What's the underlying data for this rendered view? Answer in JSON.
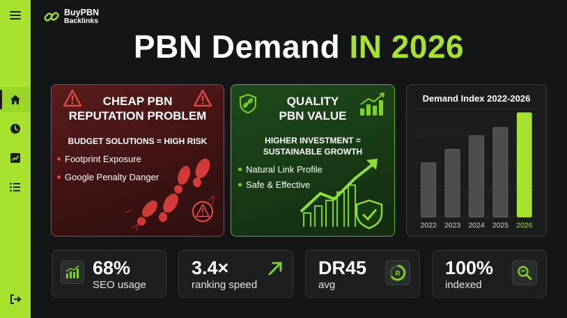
{
  "brand": {
    "line1": "BuyPBN",
    "line2": "Backlinks"
  },
  "title": {
    "main": "PBN Demand ",
    "accent": "IN 2026"
  },
  "sidebar": {
    "items": [
      {
        "icon": "menu-icon"
      },
      {
        "icon": "home-icon"
      },
      {
        "icon": "clock-icon"
      },
      {
        "icon": "trend-icon"
      },
      {
        "icon": "list-icon"
      },
      {
        "icon": "logout-icon"
      }
    ]
  },
  "cheap_card": {
    "heading_line1": "CHEAP PBN",
    "heading_line2": "REPUTATION PROBLEM",
    "subheading": "BUDGET SOLUTIONS = HIGH RISK",
    "bullets": [
      "Footprint Exposure",
      "Google Penalty Danger"
    ],
    "color": "#e04848"
  },
  "quality_card": {
    "heading_line1": "QUALITY",
    "heading_line2": "PBN VALUE",
    "subheading_line1": "HIGHER INVESTMENT =",
    "subheading_line2": "SUSTAINABLE GROWTH",
    "bullets": [
      "Natural Link Profile",
      "Safe & Effective"
    ],
    "color": "#7ed321"
  },
  "chart_data": {
    "type": "bar",
    "title": "Demand Index 2022-2026",
    "categories": [
      "2022",
      "2023",
      "2024",
      "2025",
      "2026"
    ],
    "values": [
      40,
      50,
      60,
      66,
      77
    ],
    "ylim": [
      0,
      80
    ],
    "grid": true,
    "highlight": "2026",
    "bar_color": "#4a4d50",
    "highlight_color": "#a6e22e"
  },
  "stats": [
    {
      "value": "68%",
      "label": "SEO usage",
      "icon": "bar-chart-icon"
    },
    {
      "value": "3.4×",
      "label": "ranking speed",
      "icon": "arrow-up-right-icon"
    },
    {
      "value": "DR45",
      "label": "avg",
      "icon": "gauge-icon"
    },
    {
      "value": "100%",
      "label": "indexed",
      "icon": "magnifier-icon"
    }
  ]
}
